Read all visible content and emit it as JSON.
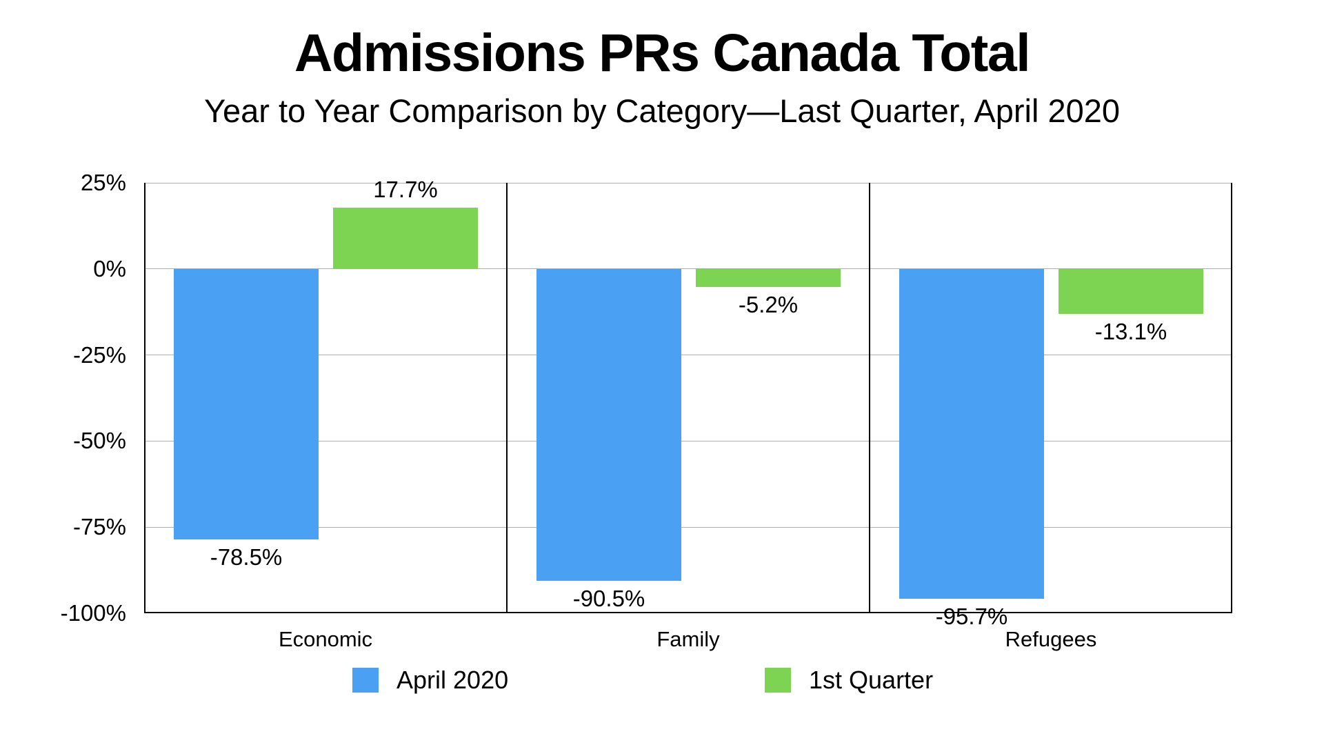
{
  "title": "Admissions PRs Canada Total",
  "subtitle": "Year to Year Comparison by Category—Last Quarter, April 2020",
  "chart_data": {
    "type": "bar",
    "categories": [
      "Economic",
      "Family",
      "Refugees"
    ],
    "series": [
      {
        "name": "April 2020",
        "color": "#4AA1F4",
        "values": [
          -78.5,
          -90.5,
          -95.7
        ],
        "labels": [
          "-78.5%",
          "-90.5%",
          "-95.7%"
        ]
      },
      {
        "name": "1st Quarter",
        "color": "#7CD452",
        "values": [
          17.7,
          -5.2,
          -13.1
        ],
        "labels": [
          "17.7%",
          "-5.2%",
          "-13.1%"
        ]
      }
    ],
    "yticks": [
      {
        "value": 25,
        "label": "25%"
      },
      {
        "value": 0,
        "label": "0%"
      },
      {
        "value": -25,
        "label": "-25%"
      },
      {
        "value": -50,
        "label": "-50%"
      },
      {
        "value": -75,
        "label": "-75%"
      },
      {
        "value": -100,
        "label": "-100%"
      }
    ],
    "ylim": [
      -100,
      25
    ],
    "grid": true,
    "grid_color": "#AEAEAE",
    "axis_color": "#000000",
    "legend_position": "bottom"
  }
}
